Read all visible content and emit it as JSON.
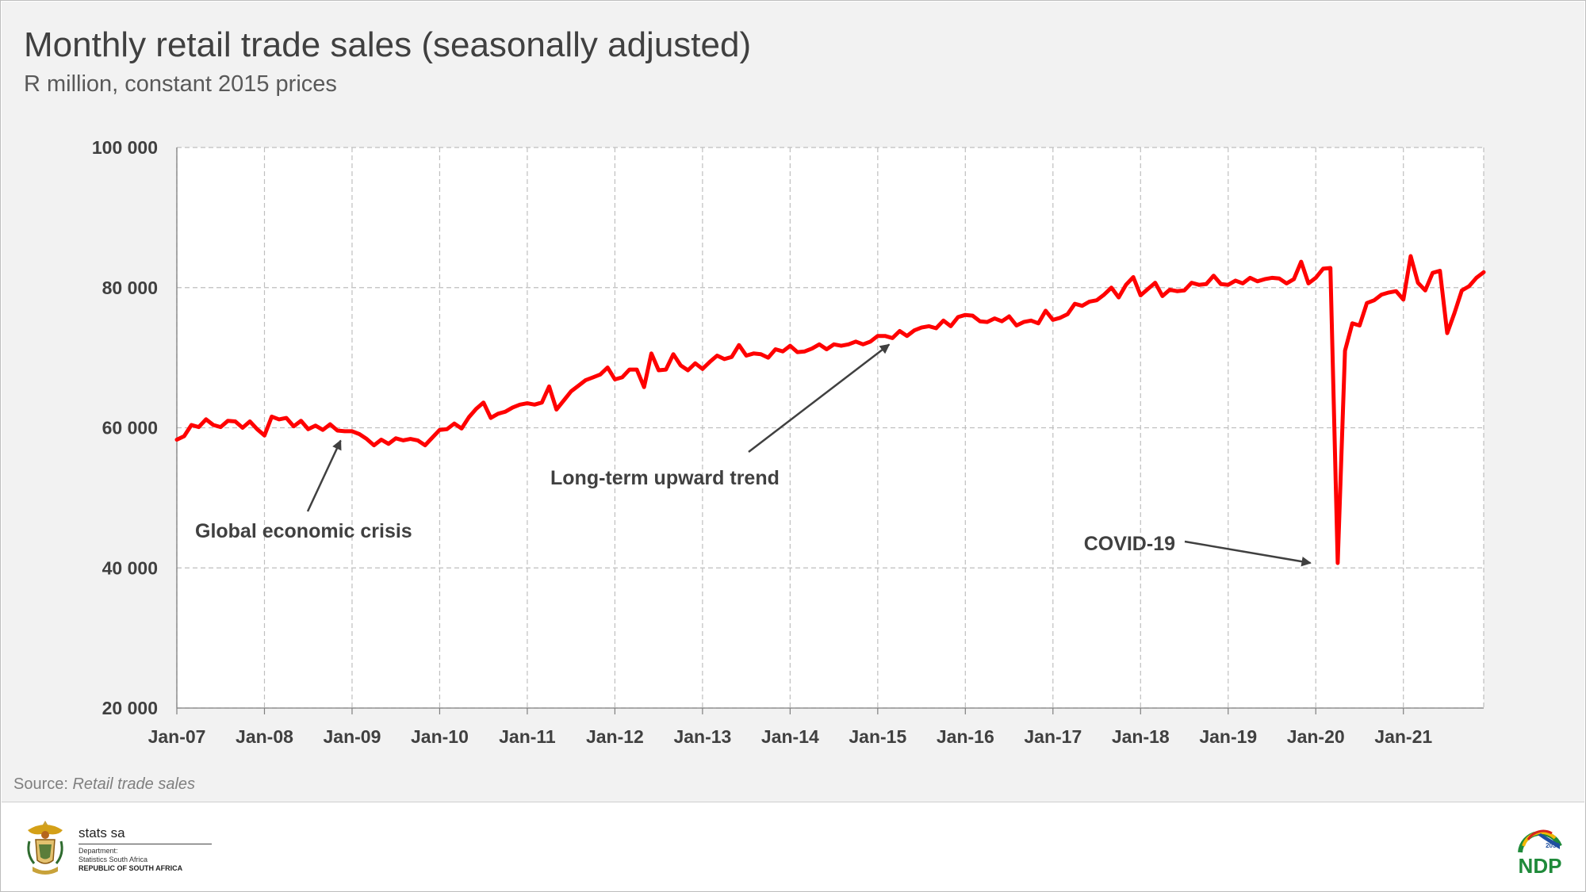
{
  "header": {
    "title": "Monthly retail trade sales (seasonally adjusted)",
    "subtitle": "R million, constant 2015 prices"
  },
  "source": {
    "prefix": "Source: ",
    "text": "Retail trade sales"
  },
  "footer": {
    "brand": "stats sa",
    "department_line1": "Department:",
    "department_line2": "Statistics South Africa",
    "country": "REPUBLIC OF SOUTH AFRICA",
    "ndp_logo_text": "NDP",
    "ndp_logo_year": "2030"
  },
  "colors": {
    "line": "#ff0000",
    "annotation": "#404040",
    "grid": "#bfbfbf",
    "background": "#f2f2f2",
    "plot": "#ffffff"
  },
  "chart_data": {
    "type": "line",
    "title": "Monthly retail trade sales (seasonally adjusted)",
    "ylabel": "R million, constant 2015 prices",
    "ylim": [
      20000,
      100000
    ],
    "yticks": [
      20000,
      40000,
      60000,
      80000,
      100000
    ],
    "ytick_labels": [
      "20 000",
      "40 000",
      "60 000",
      "80 000",
      "100 000"
    ],
    "xlim": [
      "Jan-07",
      "Dec-21"
    ],
    "xtick_labels": [
      "Jan-07",
      "Jan-08",
      "Jan-09",
      "Jan-10",
      "Jan-11",
      "Jan-12",
      "Jan-13",
      "Jan-14",
      "Jan-15",
      "Jan-16",
      "Jan-17",
      "Jan-18",
      "Jan-19",
      "Jan-20",
      "Jan-21"
    ],
    "grid": true,
    "legend": "none",
    "series": [
      {
        "x": [
          "Jan-07",
          "Feb-07",
          "Mar-07",
          "Apr-07",
          "May-07",
          "Jun-07",
          "Jul-07",
          "Aug-07",
          "Sep-07",
          "Oct-07",
          "Nov-07",
          "Dec-07",
          "Jan-08",
          "Feb-08",
          "Mar-08",
          "Apr-08",
          "May-08",
          "Jun-08",
          "Jul-08",
          "Aug-08",
          "Sep-08",
          "Oct-08",
          "Nov-08",
          "Dec-08",
          "Jan-09",
          "Feb-09",
          "Mar-09",
          "Apr-09",
          "May-09",
          "Jun-09",
          "Jul-09",
          "Aug-09",
          "Sep-09",
          "Oct-09",
          "Nov-09",
          "Dec-09",
          "Jan-10",
          "Feb-10",
          "Mar-10",
          "Apr-10",
          "May-10",
          "Jun-10",
          "Jul-10",
          "Aug-10",
          "Sep-10",
          "Oct-10",
          "Nov-10",
          "Dec-10",
          "Jan-11",
          "Feb-11",
          "Mar-11",
          "Apr-11",
          "May-11",
          "Jun-11",
          "Jul-11",
          "Aug-11",
          "Sep-11",
          "Oct-11",
          "Nov-11",
          "Dec-11",
          "Jan-12",
          "Feb-12",
          "Mar-12",
          "Apr-12",
          "May-12",
          "Jun-12",
          "Jul-12",
          "Aug-12",
          "Sep-12",
          "Oct-12",
          "Nov-12",
          "Dec-12",
          "Jan-13",
          "Feb-13",
          "Mar-13",
          "Apr-13",
          "May-13",
          "Jun-13",
          "Jul-13",
          "Aug-13",
          "Sep-13",
          "Oct-13",
          "Nov-13",
          "Dec-13",
          "Jan-14",
          "Feb-14",
          "Mar-14",
          "Apr-14",
          "May-14",
          "Jun-14",
          "Jul-14",
          "Aug-14",
          "Sep-14",
          "Oct-14",
          "Nov-14",
          "Dec-14",
          "Jan-15",
          "Feb-15",
          "Mar-15",
          "Apr-15",
          "May-15",
          "Jun-15",
          "Jul-15",
          "Aug-15",
          "Sep-15",
          "Oct-15",
          "Nov-15",
          "Dec-15",
          "Jan-16",
          "Feb-16",
          "Mar-16",
          "Apr-16",
          "May-16",
          "Jun-16",
          "Jul-16",
          "Aug-16",
          "Sep-16",
          "Oct-16",
          "Nov-16",
          "Dec-16",
          "Jan-17",
          "Feb-17",
          "Mar-17",
          "Apr-17",
          "May-17",
          "Jun-17",
          "Jul-17",
          "Aug-17",
          "Sep-17",
          "Oct-17",
          "Nov-17",
          "Dec-17",
          "Jan-18",
          "Feb-18",
          "Mar-18",
          "Apr-18",
          "May-18",
          "Jun-18",
          "Jul-18",
          "Aug-18",
          "Sep-18",
          "Oct-18",
          "Nov-18",
          "Dec-18",
          "Jan-19",
          "Feb-19",
          "Mar-19",
          "Apr-19",
          "May-19",
          "Jun-19",
          "Jul-19",
          "Aug-19",
          "Sep-19",
          "Oct-19",
          "Nov-19",
          "Dec-19",
          "Jan-20",
          "Feb-20",
          "Mar-20",
          "Apr-20",
          "May-20",
          "Jun-20",
          "Jul-20",
          "Aug-20",
          "Sep-20",
          "Oct-20",
          "Nov-20",
          "Dec-20",
          "Jan-21",
          "Feb-21",
          "Mar-21",
          "Apr-21",
          "May-21",
          "Jun-21",
          "Jul-21",
          "Aug-21",
          "Sep-21",
          "Oct-21",
          "Nov-21",
          "Dec-21"
        ],
        "values": [
          58300,
          58800,
          60400,
          60100,
          61200,
          60400,
          60100,
          61000,
          60900,
          60000,
          60900,
          59800,
          58900,
          61600,
          61200,
          61400,
          60200,
          61000,
          59800,
          60300,
          59700,
          60500,
          59600,
          59500,
          59500,
          59100,
          58400,
          57500,
          58300,
          57700,
          58500,
          58200,
          58400,
          58200,
          57500,
          58600,
          59700,
          59800,
          60600,
          59900,
          61500,
          62700,
          63600,
          61400,
          62000,
          62300,
          62900,
          63300,
          63500,
          63300,
          63600,
          65900,
          62600,
          63900,
          65200,
          66000,
          66800,
          67200,
          67600,
          68600,
          66900,
          67200,
          68300,
          68300,
          65800,
          70600,
          68200,
          68300,
          70500,
          68900,
          68200,
          69200,
          68400,
          69400,
          70300,
          69800,
          70100,
          71800,
          70300,
          70600,
          70500,
          70000,
          71200,
          70900,
          71700,
          70800,
          70900,
          71300,
          71900,
          71200,
          71900,
          71700,
          71900,
          72300,
          71900,
          72300,
          73100,
          73100,
          72800,
          73800,
          73100,
          73900,
          74300,
          74500,
          74200,
          75300,
          74500,
          75800,
          76100,
          76000,
          75200,
          75100,
          75600,
          75200,
          75900,
          74600,
          75100,
          75300,
          74900,
          76700,
          75400,
          75700,
          76200,
          77700,
          77400,
          78000,
          78200,
          79000,
          80000,
          78600,
          80400,
          81500,
          78900,
          79800,
          80700,
          78800,
          79700,
          79500,
          79600,
          80700,
          80400,
          80500,
          81700,
          80500,
          80400,
          81000,
          80600,
          81400,
          80900,
          81200,
          81400,
          81300,
          80600,
          81200,
          83700,
          80600,
          81400,
          82700,
          82800,
          40700,
          71000,
          74900,
          74600,
          77800,
          78200,
          79000,
          79300,
          79500,
          78300,
          84500,
          80700,
          79600,
          82100,
          82400,
          73500,
          76400,
          79600,
          80200,
          81400,
          82200
        ]
      }
    ],
    "annotations": [
      {
        "text": "Global economic crisis",
        "arrow_to": [
          "Nov-08",
          57500
        ]
      },
      {
        "text": "Long-term upward trend",
        "arrow_to": [
          "Mar-15",
          71200
        ]
      },
      {
        "text": "COVID-19",
        "arrow_to": [
          "Mar-20",
          40700
        ]
      }
    ]
  }
}
